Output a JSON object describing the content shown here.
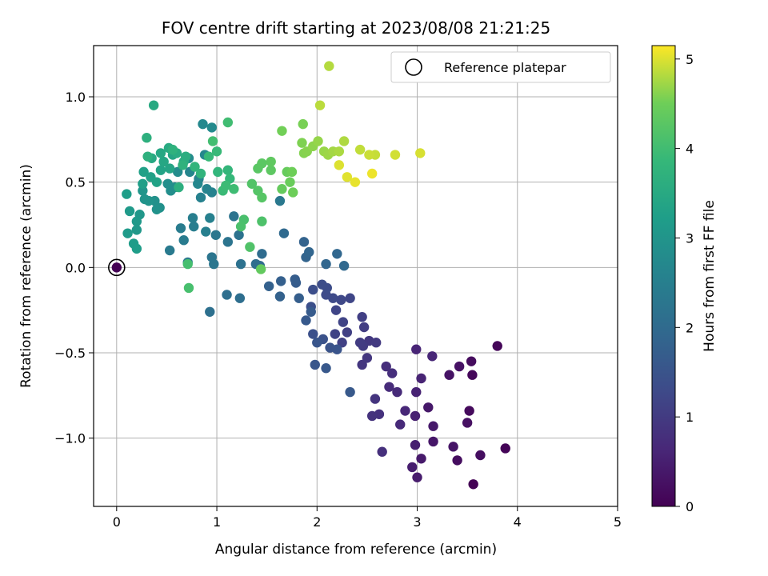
{
  "chart_data": {
    "type": "scatter",
    "title": "FOV centre drift starting at 2023/08/08 21:21:25",
    "xlabel": "Angular distance from reference (arcmin)",
    "ylabel": "Rotation from reference (arcmin)",
    "xlim": [
      -0.23,
      5.0
    ],
    "ylim": [
      -1.4,
      1.3
    ],
    "xticks": [
      "0",
      "1",
      "2",
      "3",
      "4",
      "5"
    ],
    "yticks": [
      "−1.0",
      "−0.5",
      "0.0",
      "0.5",
      "1.0"
    ],
    "grid": true,
    "legend": {
      "position": "upper right",
      "entries": [
        "Reference platepar"
      ]
    },
    "reference_point": {
      "x": 0.0,
      "y": 0.0
    },
    "colorbar": {
      "label": "Hours from first FF file",
      "range": [
        0,
        5.15
      ],
      "ticks": [
        "0",
        "1",
        "2",
        "3",
        "4",
        "5"
      ],
      "colormap": "viridis"
    },
    "points": [
      [
        3.56,
        -1.27,
        0.02
      ],
      [
        3.88,
        -1.06,
        0.05
      ],
      [
        3.8,
        -0.46,
        0.08
      ],
      [
        3.55,
        -0.63,
        0.1
      ],
      [
        3.52,
        -0.84,
        0.15
      ],
      [
        3.54,
        -0.55,
        0.18
      ],
      [
        3.4,
        -1.13,
        0.2
      ],
      [
        3.63,
        -1.1,
        0.22
      ],
      [
        3.5,
        -0.91,
        0.25
      ],
      [
        3.42,
        -0.58,
        0.28
      ],
      [
        3.32,
        -0.63,
        0.3
      ],
      [
        3.36,
        -1.05,
        0.33
      ],
      [
        3.16,
        -1.02,
        0.35
      ],
      [
        3.11,
        -0.82,
        0.38
      ],
      [
        3.16,
        -0.93,
        0.4
      ],
      [
        3.04,
        -1.12,
        0.42
      ],
      [
        3.0,
        -1.23,
        0.45
      ],
      [
        2.95,
        -1.17,
        0.48
      ],
      [
        2.98,
        -1.04,
        0.5
      ],
      [
        2.98,
        -0.87,
        0.52
      ],
      [
        2.99,
        -0.73,
        0.55
      ],
      [
        3.04,
        -0.65,
        0.58
      ],
      [
        2.99,
        -0.48,
        0.6
      ],
      [
        3.15,
        -0.52,
        0.62
      ],
      [
        2.88,
        -0.84,
        0.65
      ],
      [
        2.83,
        -0.92,
        0.68
      ],
      [
        2.8,
        -0.73,
        0.7
      ],
      [
        2.72,
        -0.7,
        0.72
      ],
      [
        2.69,
        -0.58,
        0.75
      ],
      [
        2.75,
        -0.62,
        0.78
      ],
      [
        2.65,
        -1.08,
        0.8
      ],
      [
        2.62,
        -0.86,
        0.82
      ],
      [
        2.55,
        -0.87,
        0.85
      ],
      [
        2.58,
        -0.77,
        0.88
      ],
      [
        2.45,
        -0.57,
        0.9
      ],
      [
        2.5,
        -0.53,
        0.92
      ],
      [
        2.52,
        -0.43,
        0.95
      ],
      [
        2.59,
        -0.44,
        0.98
      ],
      [
        2.46,
        -0.46,
        1.0
      ],
      [
        2.43,
        -0.44,
        1.02
      ],
      [
        2.47,
        -0.35,
        1.05
      ],
      [
        2.45,
        -0.29,
        1.08
      ],
      [
        2.3,
        -0.38,
        1.1
      ],
      [
        2.25,
        -0.44,
        1.12
      ],
      [
        2.18,
        -0.39,
        1.15
      ],
      [
        2.26,
        -0.32,
        1.18
      ],
      [
        2.19,
        -0.25,
        1.2
      ],
      [
        2.33,
        -0.18,
        1.22
      ],
      [
        2.24,
        -0.19,
        1.25
      ],
      [
        2.16,
        -0.18,
        1.28
      ],
      [
        2.09,
        -0.16,
        1.3
      ],
      [
        2.1,
        -0.12,
        1.32
      ],
      [
        2.05,
        -0.1,
        1.35
      ],
      [
        1.96,
        -0.13,
        1.38
      ],
      [
        1.94,
        -0.23,
        1.4
      ],
      [
        1.96,
        -0.39,
        1.42
      ],
      [
        2.06,
        -0.42,
        1.45
      ],
      [
        2.13,
        -0.47,
        1.48
      ],
      [
        2.2,
        -0.48,
        1.5
      ],
      [
        2.0,
        -0.44,
        1.52
      ],
      [
        1.98,
        -0.57,
        1.55
      ],
      [
        2.09,
        -0.59,
        1.58
      ],
      [
        2.33,
        -0.73,
        1.6
      ],
      [
        1.89,
        -0.31,
        1.62
      ],
      [
        1.94,
        -0.26,
        1.65
      ],
      [
        1.79,
        -0.09,
        1.68
      ],
      [
        1.78,
        -0.07,
        1.7
      ],
      [
        1.82,
        -0.18,
        1.72
      ],
      [
        1.64,
        -0.08,
        1.75
      ],
      [
        1.52,
        -0.11,
        1.78
      ],
      [
        1.63,
        -0.17,
        1.8
      ],
      [
        1.87,
        0.15,
        1.82
      ],
      [
        1.89,
        0.06,
        1.85
      ],
      [
        1.92,
        0.09,
        1.88
      ],
      [
        2.09,
        0.02,
        1.9
      ],
      [
        2.2,
        0.08,
        1.92
      ],
      [
        2.27,
        0.01,
        1.95
      ],
      [
        1.67,
        0.2,
        1.98
      ],
      [
        1.43,
        0.01,
        2.0
      ],
      [
        1.45,
        0.08,
        2.02
      ],
      [
        1.39,
        0.02,
        2.05
      ],
      [
        1.23,
        -0.18,
        2.08
      ],
      [
        1.1,
        -0.16,
        2.1
      ],
      [
        0.93,
        -0.26,
        2.12
      ],
      [
        1.24,
        0.02,
        2.15
      ],
      [
        1.22,
        0.19,
        2.18
      ],
      [
        1.17,
        0.3,
        2.2
      ],
      [
        1.11,
        0.15,
        2.22
      ],
      [
        0.95,
        0.06,
        2.25
      ],
      [
        0.97,
        0.02,
        2.28
      ],
      [
        0.99,
        0.19,
        2.3
      ],
      [
        1.63,
        0.39,
        2.32
      ],
      [
        0.71,
        0.03,
        2.35
      ],
      [
        0.53,
        0.1,
        2.38
      ],
      [
        0.67,
        0.16,
        2.4
      ],
      [
        0.64,
        0.23,
        2.42
      ],
      [
        0.77,
        0.24,
        2.45
      ],
      [
        0.76,
        0.29,
        2.48
      ],
      [
        0.89,
        0.21,
        2.5
      ],
      [
        0.93,
        0.29,
        2.52
      ],
      [
        0.84,
        0.41,
        2.55
      ],
      [
        0.95,
        0.44,
        2.58
      ],
      [
        0.9,
        0.46,
        2.6
      ],
      [
        0.82,
        0.52,
        2.62
      ],
      [
        0.73,
        0.56,
        2.65
      ],
      [
        0.81,
        0.49,
        2.68
      ],
      [
        0.88,
        0.66,
        2.7
      ],
      [
        0.86,
        0.84,
        2.72
      ],
      [
        0.95,
        0.82,
        2.75
      ],
      [
        0.72,
        0.64,
        2.78
      ],
      [
        0.61,
        0.56,
        2.8
      ],
      [
        0.58,
        0.47,
        2.82
      ],
      [
        0.54,
        0.45,
        2.85
      ],
      [
        0.51,
        0.49,
        2.88
      ],
      [
        0.43,
        0.35,
        2.9
      ],
      [
        0.38,
        0.39,
        2.92
      ],
      [
        0.4,
        0.34,
        2.95
      ],
      [
        0.32,
        0.39,
        2.98
      ],
      [
        0.28,
        0.4,
        3.0
      ],
      [
        0.26,
        0.45,
        3.02
      ],
      [
        0.23,
        0.31,
        3.05
      ],
      [
        0.2,
        0.22,
        3.08
      ],
      [
        0.2,
        0.27,
        3.1
      ],
      [
        0.13,
        0.33,
        3.12
      ],
      [
        0.11,
        0.2,
        3.15
      ],
      [
        0.17,
        0.14,
        3.18
      ],
      [
        0.2,
        0.11,
        3.2
      ],
      [
        0.1,
        0.43,
        3.22
      ],
      [
        0.26,
        0.49,
        3.25
      ],
      [
        0.27,
        0.56,
        3.28
      ],
      [
        0.34,
        0.53,
        3.3
      ],
      [
        0.4,
        0.5,
        3.32
      ],
      [
        0.44,
        0.57,
        3.35
      ],
      [
        0.53,
        0.58,
        3.38
      ],
      [
        0.56,
        0.66,
        3.4
      ],
      [
        0.47,
        0.62,
        3.42
      ],
      [
        0.44,
        0.67,
        3.45
      ],
      [
        0.35,
        0.64,
        3.48
      ],
      [
        0.37,
        0.95,
        3.5
      ],
      [
        0.52,
        0.7,
        3.52
      ],
      [
        0.6,
        0.67,
        3.55
      ],
      [
        0.67,
        0.62,
        3.58
      ],
      [
        0.69,
        0.65,
        3.6
      ],
      [
        0.62,
        0.47,
        3.62
      ],
      [
        0.3,
        0.76,
        3.65
      ],
      [
        0.31,
        0.65,
        3.68
      ],
      [
        0.56,
        0.69,
        3.7
      ],
      [
        0.66,
        0.6,
        3.72
      ],
      [
        0.84,
        0.55,
        3.75
      ],
      [
        0.78,
        0.59,
        3.78
      ],
      [
        1.01,
        0.56,
        3.8
      ],
      [
        1.11,
        0.57,
        3.82
      ],
      [
        1.13,
        0.52,
        3.85
      ],
      [
        0.92,
        0.65,
        3.88
      ],
      [
        1.0,
        0.68,
        3.9
      ],
      [
        1.06,
        0.45,
        3.92
      ],
      [
        1.09,
        0.48,
        3.95
      ],
      [
        1.17,
        0.46,
        3.98
      ],
      [
        1.11,
        0.85,
        4.0
      ],
      [
        0.96,
        0.74,
        4.02
      ],
      [
        0.71,
        0.02,
        4.05
      ],
      [
        0.72,
        -0.12,
        4.08
      ],
      [
        1.27,
        0.28,
        4.1
      ],
      [
        1.24,
        0.24,
        4.12
      ],
      [
        1.45,
        0.27,
        4.15
      ],
      [
        1.33,
        0.12,
        4.18
      ],
      [
        1.35,
        0.49,
        4.2
      ],
      [
        1.41,
        0.45,
        4.22
      ],
      [
        1.45,
        0.41,
        4.25
      ],
      [
        1.41,
        0.58,
        4.28
      ],
      [
        1.45,
        0.61,
        4.3
      ],
      [
        1.54,
        0.57,
        4.32
      ],
      [
        1.54,
        0.62,
        4.35
      ],
      [
        1.44,
        -0.01,
        4.38
      ],
      [
        1.65,
        0.46,
        4.4
      ],
      [
        1.7,
        0.56,
        4.42
      ],
      [
        1.73,
        0.5,
        4.45
      ],
      [
        1.76,
        0.44,
        4.48
      ],
      [
        1.75,
        0.56,
        4.5
      ],
      [
        1.65,
        0.8,
        4.52
      ],
      [
        1.86,
        0.84,
        4.55
      ],
      [
        1.85,
        0.73,
        4.58
      ],
      [
        1.87,
        0.67,
        4.6
      ],
      [
        1.9,
        0.68,
        4.62
      ],
      [
        1.96,
        0.71,
        4.65
      ],
      [
        2.01,
        0.74,
        4.68
      ],
      [
        2.07,
        0.68,
        4.7
      ],
      [
        2.11,
        0.66,
        4.72
      ],
      [
        2.16,
        0.68,
        4.75
      ],
      [
        2.22,
        0.68,
        4.78
      ],
      [
        2.27,
        0.74,
        4.8
      ],
      [
        2.12,
        1.18,
        4.82
      ],
      [
        2.03,
        0.95,
        4.85
      ],
      [
        2.43,
        0.69,
        4.88
      ],
      [
        2.58,
        0.66,
        4.9
      ],
      [
        2.52,
        0.66,
        4.92
      ],
      [
        2.78,
        0.66,
        4.95
      ],
      [
        3.03,
        0.67,
        4.98
      ],
      [
        2.22,
        0.6,
        5.0
      ],
      [
        2.3,
        0.53,
        5.02
      ],
      [
        2.38,
        0.5,
        5.05
      ],
      [
        2.55,
        0.55,
        5.08
      ]
    ]
  },
  "page": {
    "colorbar_tick_labels": [
      "0",
      "1",
      "2",
      "3",
      "4",
      "5"
    ]
  }
}
